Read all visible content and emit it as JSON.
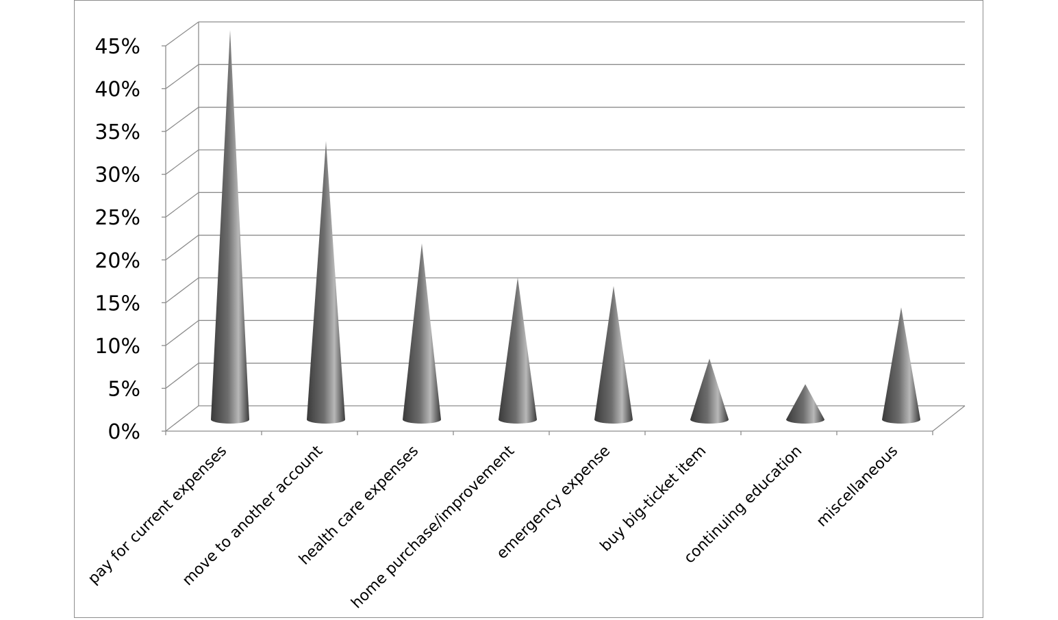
{
  "chart_data": {
    "type": "bar",
    "style": "3d-cone",
    "title": "",
    "xlabel": "",
    "ylabel": "",
    "ylim": [
      0,
      45
    ],
    "y_tick_labels": [
      "0%",
      "5%",
      "10%",
      "15%",
      "20%",
      "25%",
      "30%",
      "35%",
      "40%",
      "45%"
    ],
    "y_tick_values": [
      0,
      5,
      10,
      15,
      20,
      25,
      30,
      35,
      40,
      45
    ],
    "grid": true,
    "legend": "none",
    "categories": [
      "pay for current expenses",
      "move to another account",
      "health care expenses",
      "home purchase/improvement",
      "emergency expense",
      "buy big-ticket item",
      "continuing education",
      "miscellaneous"
    ],
    "values": [
      45,
      32,
      20,
      16,
      15,
      6.5,
      3.5,
      12.5
    ],
    "colors": {
      "cone_dark": "#3a3a3a",
      "cone_mid": "#6e6e6e",
      "cone_light": "#b8b8b8",
      "gridline": "#8c8c8c",
      "border": "#8c8c8c"
    }
  }
}
